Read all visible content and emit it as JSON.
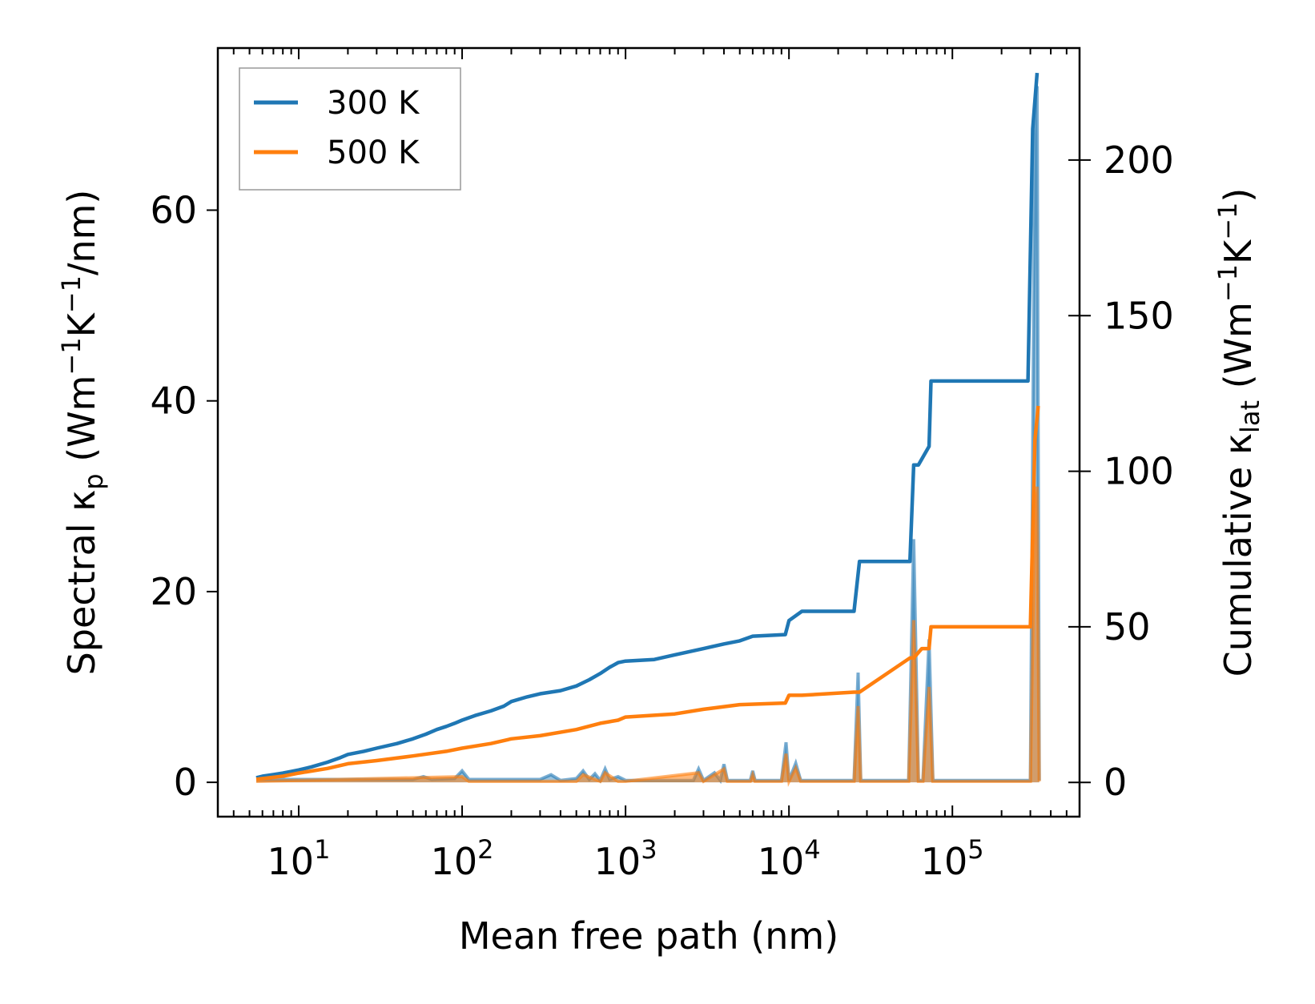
{
  "chart_data": {
    "type": "line",
    "title": "",
    "xlabel": "Mean free path (nm)",
    "xscale": "log",
    "xlim": [
      3.2,
      600000
    ],
    "x_ticks": [
      {
        "value": 10,
        "base": "10",
        "exp": "1"
      },
      {
        "value": 100,
        "base": "10",
        "exp": "2"
      },
      {
        "value": 1000,
        "base": "10",
        "exp": "3"
      },
      {
        "value": 10000,
        "base": "10",
        "exp": "4"
      },
      {
        "value": 100000,
        "base": "10",
        "exp": "5"
      }
    ],
    "ylabel_left": {
      "pre": "Spectral κ",
      "sub": "p",
      "mid": " (Wm",
      "sup1": "−1",
      "mid2": "K",
      "sup2": "−1",
      "post": "/nm)"
    },
    "ylim_left": [
      -3.6,
      77
    ],
    "yticks_left": [
      0,
      20,
      40,
      60
    ],
    "ylabel_right": {
      "pre": "Cumulative κ",
      "sub": "lat",
      "mid": " (Wm",
      "sup1": "−1",
      "mid2": "K",
      "sup2": "−1",
      "post": ")"
    },
    "ylim_right": [
      -11,
      236
    ],
    "yticks_right": [
      0,
      50,
      100,
      150,
      200
    ],
    "legend_position": "upper-left",
    "grid": false,
    "series": [
      {
        "name": "300 K",
        "axis": "right",
        "color": "#1f77b4",
        "x": [
          5.5,
          6,
          7,
          8,
          9,
          10,
          12,
          15,
          18,
          20,
          25,
          30,
          40,
          50,
          60,
          70,
          80,
          90,
          100,
          120,
          150,
          180,
          200,
          250,
          300,
          400,
          500,
          600,
          700,
          800,
          900,
          1000,
          1500,
          2000,
          3000,
          4000,
          5000,
          6000,
          9500,
          10000,
          12000,
          25000,
          27000,
          55000,
          58000,
          62000,
          72000,
          74000,
          290000,
          310000,
          330000
        ],
        "y": [
          1.5,
          2,
          2.5,
          3,
          3.5,
          4,
          5,
          6.5,
          8,
          9,
          10,
          11,
          12.5,
          14,
          15.5,
          17,
          18,
          19,
          20,
          21.5,
          23,
          24.5,
          26,
          27.5,
          28.5,
          29.5,
          31,
          33,
          35,
          37,
          38.5,
          39,
          39.5,
          41,
          43,
          44.5,
          45.5,
          47,
          47.5,
          52,
          55,
          55,
          71,
          71,
          102,
          102,
          108,
          129,
          129,
          210,
          228
        ]
      },
      {
        "name": "500 K",
        "axis": "right",
        "color": "#ff7f0e",
        "x": [
          5.5,
          8,
          10,
          15,
          20,
          30,
          50,
          80,
          100,
          150,
          200,
          300,
          500,
          700,
          900,
          1000,
          2000,
          3000,
          5000,
          9500,
          10000,
          12000,
          25000,
          27000,
          55000,
          58000,
          65000,
          72000,
          74000,
          300000,
          320000,
          335000
        ],
        "y": [
          1,
          2,
          3,
          4.5,
          6,
          7,
          8.5,
          10,
          11,
          12.5,
          14,
          15,
          17,
          19,
          20,
          21,
          22,
          23.5,
          25,
          25.5,
          28,
          28,
          29,
          29,
          40,
          40,
          43,
          43,
          50,
          50,
          110,
          121
        ]
      },
      {
        "name": "",
        "axis": "left",
        "color": "#1f77b4",
        "x": [
          5.5,
          50,
          58,
          65,
          90,
          100,
          110,
          300,
          350,
          400,
          500,
          550,
          600,
          650,
          700,
          750,
          800,
          900,
          1000,
          2600,
          2800,
          3000,
          3500,
          3800,
          4000,
          4200,
          5000,
          5800,
          6000,
          6200,
          9000,
          9600,
          10000,
          11000,
          11800,
          12500,
          25000,
          26500,
          27500,
          29000,
          54000,
          58000,
          62000,
          66000,
          72000,
          76000,
          80000,
          300000,
          320000,
          330000,
          340000
        ],
        "y": [
          0.3,
          0.3,
          0.6,
          0.3,
          0.4,
          1.2,
          0.3,
          0.3,
          0.8,
          0.2,
          0.4,
          1.2,
          0.3,
          0.9,
          0.2,
          1.4,
          0.3,
          0.6,
          0.2,
          0.2,
          1.4,
          0.2,
          1,
          0.2,
          1.9,
          0.2,
          0.2,
          0.2,
          1.2,
          0.2,
          0.2,
          4.2,
          0.2,
          2,
          0.2,
          0.2,
          0.2,
          11.5,
          0.2,
          0.2,
          0.2,
          25.5,
          0.2,
          0.2,
          15,
          0.2,
          0.2,
          0.2,
          68,
          73,
          0.2
        ]
      },
      {
        "name": "",
        "axis": "left",
        "color": "#ff7f0e",
        "x": [
          5.5,
          100,
          110,
          300,
          500,
          550,
          700,
          750,
          900,
          1000,
          2800,
          3000,
          4000,
          4200,
          5800,
          6000,
          6200,
          9000,
          9600,
          10000,
          11000,
          11800,
          25000,
          26500,
          27500,
          54000,
          58000,
          62000,
          66000,
          72000,
          76000,
          300000,
          320000,
          330000,
          340000
        ],
        "y": [
          0.1,
          0.6,
          0.1,
          0.1,
          0.1,
          0.8,
          0.1,
          1,
          0.1,
          0.1,
          1,
          0.1,
          1.4,
          0.1,
          0.1,
          0.8,
          0.1,
          0.1,
          3,
          0.1,
          1.5,
          0.1,
          0.1,
          8,
          0.1,
          0.1,
          17,
          0.1,
          0.1,
          10,
          0.1,
          0.1,
          30,
          31,
          0.1
        ]
      }
    ]
  }
}
